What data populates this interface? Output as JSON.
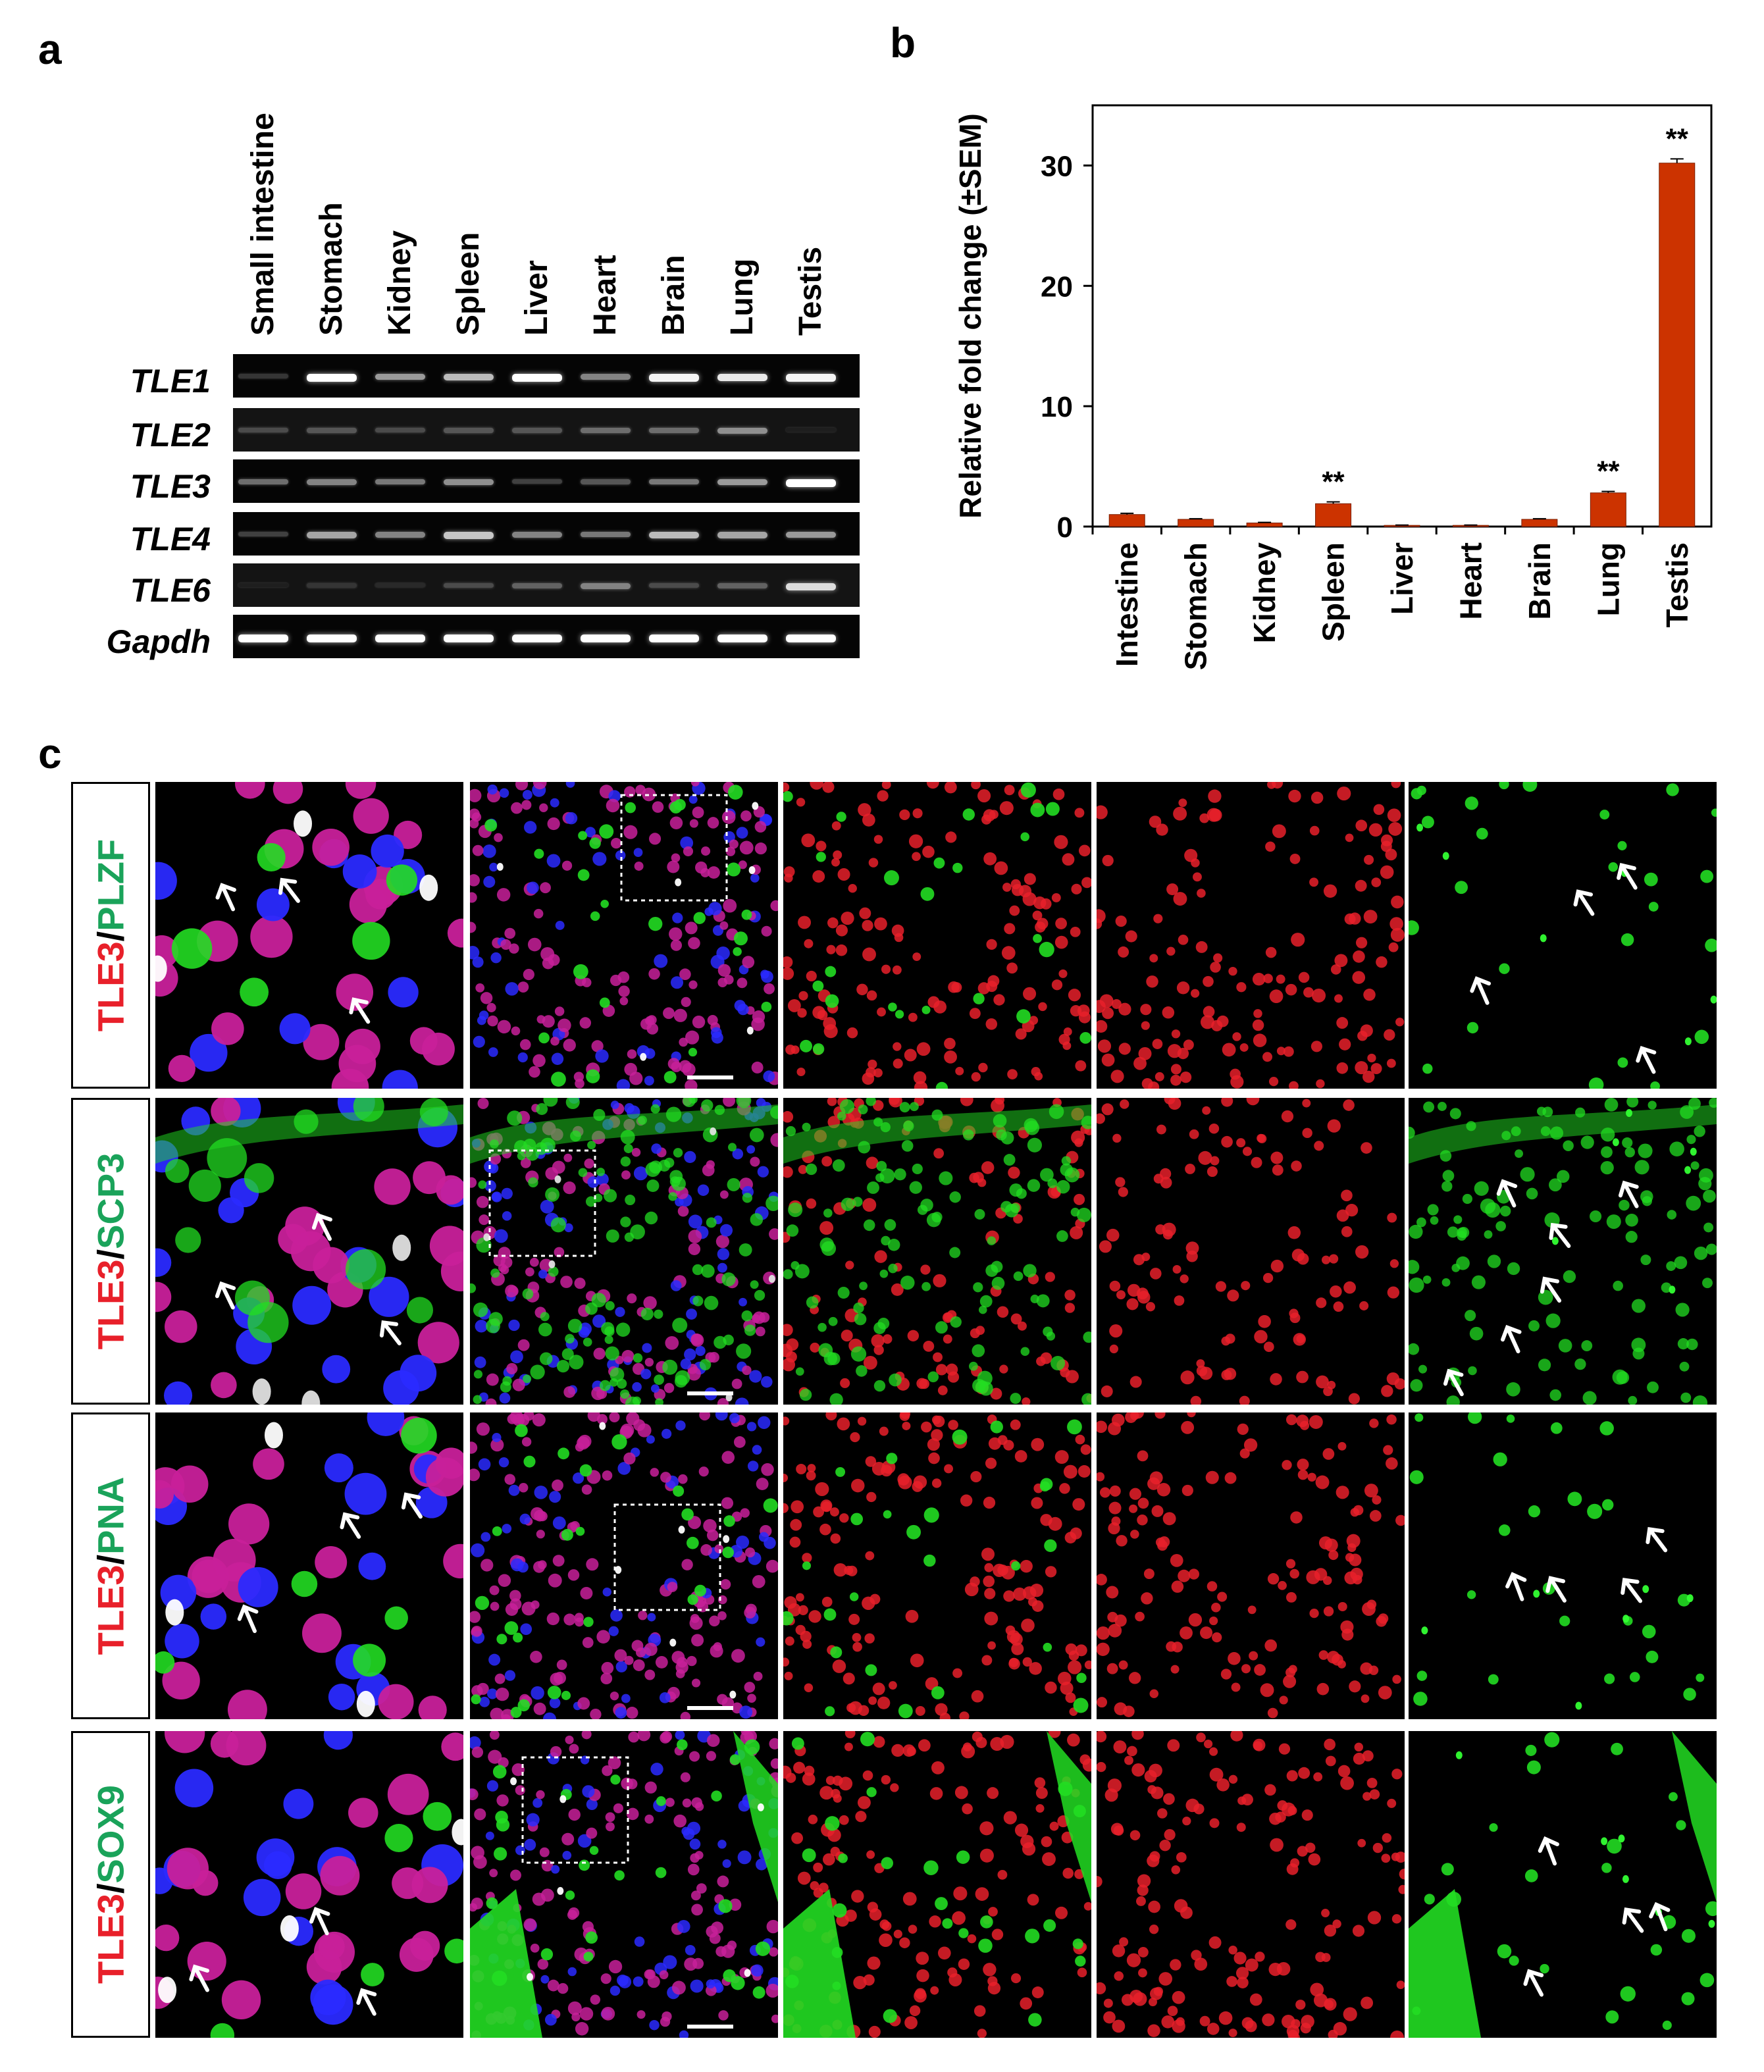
{
  "panels": {
    "a": "a",
    "b": "b",
    "c": "c"
  },
  "gel": {
    "lanes": [
      "Small intestine",
      "Stomach",
      "Kidney",
      "Spleen",
      "Liver",
      "Heart",
      "Brain",
      "Lung",
      "Testis"
    ],
    "genes": [
      {
        "name": "TLE1",
        "intensities": [
          0.1,
          1.0,
          0.55,
          0.7,
          1.0,
          0.45,
          0.95,
          0.9,
          0.95
        ]
      },
      {
        "name": "TLE2",
        "intensities": [
          0.2,
          0.25,
          0.2,
          0.25,
          0.25,
          0.35,
          0.35,
          0.5,
          0.0
        ]
      },
      {
        "name": "TLE3",
        "intensities": [
          0.35,
          0.45,
          0.4,
          0.5,
          0.15,
          0.25,
          0.4,
          0.55,
          1.0
        ]
      },
      {
        "name": "TLE4",
        "intensities": [
          0.15,
          0.6,
          0.45,
          0.75,
          0.45,
          0.4,
          0.7,
          0.6,
          0.55
        ]
      },
      {
        "name": "TLE6",
        "intensities": [
          0.0,
          0.1,
          0.05,
          0.2,
          0.3,
          0.45,
          0.2,
          0.3,
          0.85
        ]
      },
      {
        "name": "Gapdh",
        "intensities": [
          1.0,
          1.0,
          1.0,
          1.0,
          1.0,
          1.0,
          1.0,
          1.0,
          1.0
        ]
      }
    ]
  },
  "chart_data": {
    "type": "bar",
    "categories": [
      "Intestine",
      "Stomach",
      "Kidney",
      "Spleen",
      "Liver",
      "Heart",
      "Brain",
      "Lung",
      "Testis"
    ],
    "values": [
      1.0,
      0.6,
      0.3,
      1.9,
      0.1,
      0.1,
      0.6,
      2.8,
      30.2
    ],
    "errors": [
      0.1,
      0.05,
      0.05,
      0.15,
      0.02,
      0.02,
      0.05,
      0.12,
      0.35
    ],
    "annotations": [
      "",
      "",
      "",
      "**",
      "",
      "",
      "",
      "**",
      "**"
    ],
    "ylabel": "Relative fold change (±SEM)",
    "yticks": [
      0,
      10,
      20,
      30
    ],
    "ylim": [
      0,
      35
    ],
    "bar_color": "#cc3300",
    "grid": false
  },
  "micro": {
    "rows": [
      {
        "marker1": "TLE3",
        "sep": "/",
        "marker2": "PLZF",
        "marker2_color": "#1aa35a",
        "overlay": "#ffffff",
        "nuclei": "#2a2aff"
      },
      {
        "marker1": "TLE3",
        "sep": "/",
        "marker2": "SCP3",
        "marker2_color": "#1aa35a",
        "overlay": "#e0e0e0",
        "nuclei": "#2a2aff"
      },
      {
        "marker1": "TLE3",
        "sep": "/",
        "marker2": "PNA",
        "marker2_color": "#1aa35a",
        "overlay": "#ffffff",
        "nuclei": "#2a2aff"
      },
      {
        "marker1": "TLE3",
        "sep": "/",
        "marker2": "SOX9",
        "marker2_color": "#1aa35a",
        "overlay": "#ffffff",
        "nuclei": "#2a2aff"
      }
    ],
    "marker1_color": "#e8202a"
  }
}
